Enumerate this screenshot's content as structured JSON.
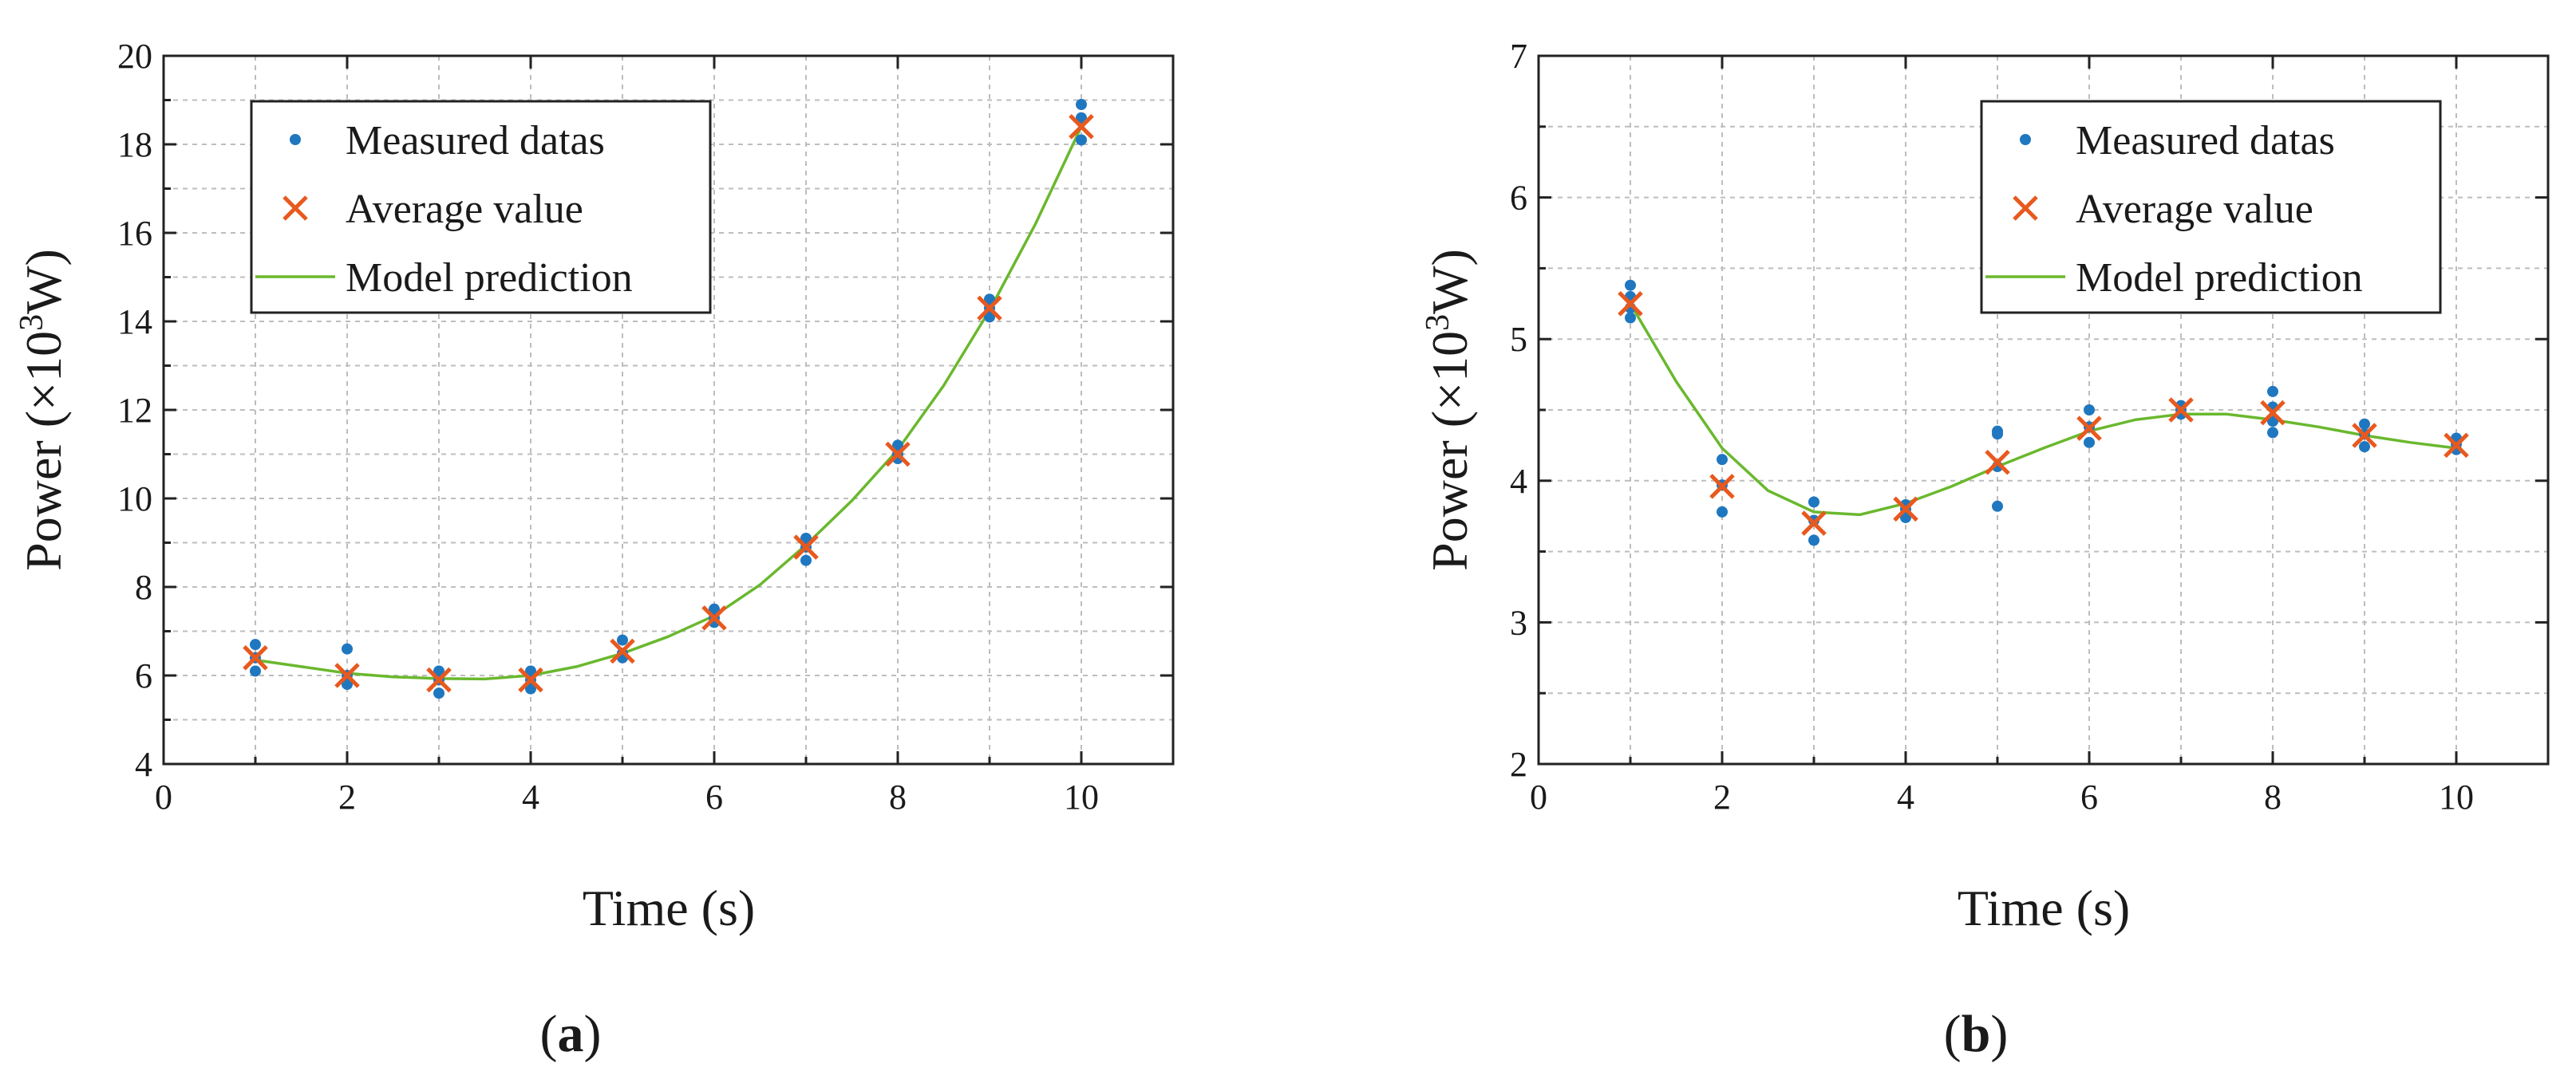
{
  "chart_data": [
    {
      "type": "scatter",
      "panel_label": "a",
      "xlabel": "Time (s)",
      "ylabel": {
        "prefix": "Power (×10",
        "sup": "3",
        "suffix": "W)"
      },
      "xlim": [
        0,
        11
      ],
      "ylim": [
        4,
        20
      ],
      "xticks": [
        0,
        2,
        4,
        6,
        8,
        10
      ],
      "yticks": [
        4,
        6,
        8,
        10,
        12,
        14,
        16,
        18,
        20
      ],
      "grid": true,
      "legend": {
        "position": "top-left",
        "entries": [
          {
            "label": "Measured datas",
            "marker": "dot"
          },
          {
            "label": "Average value",
            "marker": "x"
          },
          {
            "label": "Model prediction",
            "marker": "line"
          }
        ]
      },
      "series": [
        {
          "name": "Measured datas",
          "color": "#1f77c0",
          "points": [
            [
              1,
              6.7
            ],
            [
              1,
              6.1
            ],
            [
              1,
              6.4
            ],
            [
              2,
              6.6
            ],
            [
              2,
              5.8
            ],
            [
              2,
              6.0
            ],
            [
              3,
              6.1
            ],
            [
              3,
              5.6
            ],
            [
              3,
              5.9
            ],
            [
              4,
              6.1
            ],
            [
              4,
              5.7
            ],
            [
              4,
              5.9
            ],
            [
              5,
              6.8
            ],
            [
              5,
              6.4
            ],
            [
              5,
              6.5
            ],
            [
              6,
              7.5
            ],
            [
              6,
              7.2
            ],
            [
              6,
              7.3
            ],
            [
              7,
              9.1
            ],
            [
              7,
              8.6
            ],
            [
              7,
              8.9
            ],
            [
              8,
              11.2
            ],
            [
              8,
              10.9
            ],
            [
              8,
              11.0
            ],
            [
              9,
              14.5
            ],
            [
              9,
              14.1
            ],
            [
              9,
              14.3
            ],
            [
              10,
              18.9
            ],
            [
              10,
              18.1
            ],
            [
              10,
              18.6
            ]
          ]
        },
        {
          "name": "Average value",
          "color": "#e8591e",
          "points": [
            [
              1,
              6.4
            ],
            [
              2,
              6.0
            ],
            [
              3,
              5.9
            ],
            [
              4,
              5.9
            ],
            [
              5,
              6.55
            ],
            [
              6,
              7.3
            ],
            [
              7,
              8.9
            ],
            [
              8,
              11.0
            ],
            [
              9,
              14.3
            ],
            [
              10,
              18.4
            ]
          ]
        },
        {
          "name": "Model prediction",
          "color": "#6ab82e",
          "points": [
            [
              1,
              6.35
            ],
            [
              1.5,
              6.2
            ],
            [
              2,
              6.05
            ],
            [
              2.5,
              5.97
            ],
            [
              3,
              5.93
            ],
            [
              3.5,
              5.92
            ],
            [
              4,
              6.0
            ],
            [
              4.5,
              6.2
            ],
            [
              5,
              6.5
            ],
            [
              5.5,
              6.88
            ],
            [
              6,
              7.35
            ],
            [
              6.5,
              8.05
            ],
            [
              7,
              8.95
            ],
            [
              7.5,
              9.95
            ],
            [
              8,
              11.1
            ],
            [
              8.5,
              12.55
            ],
            [
              9,
              14.25
            ],
            [
              9.5,
              16.2
            ],
            [
              10,
              18.4
            ]
          ]
        }
      ]
    },
    {
      "type": "scatter",
      "panel_label": "b",
      "xlabel": "Time (s)",
      "ylabel": {
        "prefix": "Power (×10",
        "sup": "3",
        "suffix": "W)"
      },
      "xlim": [
        0,
        11
      ],
      "ylim": [
        2,
        7
      ],
      "xticks": [
        0,
        2,
        4,
        6,
        8,
        10
      ],
      "yticks": [
        2,
        3,
        4,
        5,
        6,
        7
      ],
      "grid": true,
      "legend": {
        "position": "top-right",
        "entries": [
          {
            "label": "Measured datas",
            "marker": "dot"
          },
          {
            "label": "Average value",
            "marker": "x"
          },
          {
            "label": "Model prediction",
            "marker": "line"
          }
        ]
      },
      "series": [
        {
          "name": "Measured datas",
          "color": "#1f77c0",
          "points": [
            [
              1,
              5.38
            ],
            [
              1,
              5.15
            ],
            [
              1,
              5.3
            ],
            [
              1,
              5.22
            ],
            [
              2,
              4.15
            ],
            [
              2,
              3.78
            ],
            [
              2,
              3.97
            ],
            [
              3,
              3.85
            ],
            [
              3,
              3.58
            ],
            [
              3,
              3.72
            ],
            [
              4,
              3.83
            ],
            [
              4,
              3.74
            ],
            [
              4,
              3.8
            ],
            [
              5,
              4.35
            ],
            [
              5,
              4.33
            ],
            [
              5,
              3.82
            ],
            [
              5,
              4.1
            ],
            [
              6,
              4.5
            ],
            [
              6,
              4.27
            ],
            [
              6,
              4.38
            ],
            [
              7,
              4.53
            ],
            [
              7,
              4.47
            ],
            [
              7,
              4.5
            ],
            [
              8,
              4.63
            ],
            [
              8,
              4.34
            ],
            [
              8,
              4.52
            ],
            [
              8,
              4.42
            ],
            [
              9,
              4.4
            ],
            [
              9,
              4.24
            ],
            [
              9,
              4.33
            ],
            [
              10,
              4.3
            ],
            [
              10,
              4.22
            ],
            [
              10,
              4.26
            ]
          ]
        },
        {
          "name": "Average value",
          "color": "#e8591e",
          "points": [
            [
              1,
              5.25
            ],
            [
              2,
              3.96
            ],
            [
              3,
              3.7
            ],
            [
              4,
              3.8
            ],
            [
              5,
              4.13
            ],
            [
              6,
              4.37
            ],
            [
              7,
              4.5
            ],
            [
              8,
              4.48
            ],
            [
              9,
              4.32
            ],
            [
              10,
              4.25
            ]
          ]
        },
        {
          "name": "Model prediction",
          "color": "#6ab82e",
          "points": [
            [
              1,
              5.25
            ],
            [
              1.5,
              4.7
            ],
            [
              2,
              4.23
            ],
            [
              2.5,
              3.93
            ],
            [
              3,
              3.78
            ],
            [
              3.5,
              3.76
            ],
            [
              4,
              3.84
            ],
            [
              4.5,
              3.96
            ],
            [
              5,
              4.1
            ],
            [
              5.5,
              4.23
            ],
            [
              6,
              4.35
            ],
            [
              6.5,
              4.43
            ],
            [
              7,
              4.47
            ],
            [
              7.5,
              4.47
            ],
            [
              8,
              4.43
            ],
            [
              8.5,
              4.38
            ],
            [
              9,
              4.32
            ],
            [
              9.5,
              4.27
            ],
            [
              10,
              4.23
            ]
          ]
        }
      ]
    }
  ]
}
